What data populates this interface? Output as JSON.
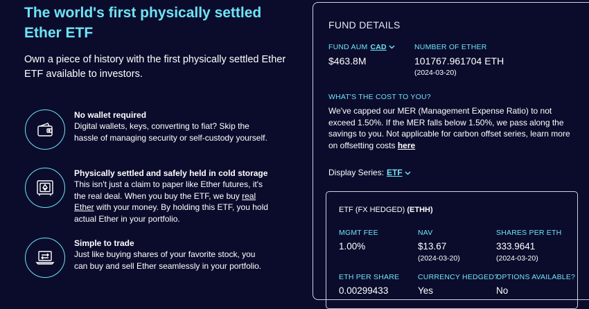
{
  "hero": {
    "title": "The world's first physically settled Ether ETF",
    "subtitle": "Own a piece of history with the first physically settled Ether ETF available to investors."
  },
  "features": [
    {
      "icon": "wallet-icon",
      "title": "No wallet required",
      "description": "Digital wallets, keys, converting to fiat? Skip the hassle of managing security or self-custody yourself."
    },
    {
      "icon": "vault-icon",
      "title": "Physically settled and safely held in cold storage",
      "desc_before": "This isn't just a claim to paper like Ether futures, it's the real deal. When you buy the ETF, we buy ",
      "desc_link": "real Ether",
      "desc_after": " with your money. By holding this ETF, you hold actual Ether in your portfolio."
    },
    {
      "icon": "laptop-transfer-icon",
      "title": "Simple to trade",
      "description": "Just like buying shares of your favorite stock, you can buy and sell Ether seamlessly in your portfolio."
    }
  ],
  "fund_details": {
    "heading": "FUND DETAILS",
    "aum_label": "FUND AUM",
    "currency": "CAD",
    "aum_value": "$463.8M",
    "ether_label": "NUMBER OF ETHER",
    "ether_value": "101767.961704 ETH",
    "ether_date": "(2024-03-20)",
    "cost_label": "WHAT'S THE COST TO YOU?",
    "cost_text": "We've capped our MER (Management Expense Ratio) to not exceed 1.50%. If the MER falls below 1.50%, we pass along the savings to you. Not applicable for carbon offset series, learn more on offsetting costs ",
    "cost_link": "here",
    "series_label": "Display Series:",
    "series_value": "ETF"
  },
  "series_card": {
    "title_prefix": "ETF (FX HEDGED) ",
    "title_ticker": "(ETHH)",
    "mgmt_fee_label": "MGMT FEE",
    "mgmt_fee_value": "1.00%",
    "nav_label": "NAV",
    "nav_value": "$13.67",
    "nav_date": "(2024-03-20)",
    "shares_label": "SHARES PER ETH",
    "shares_value": "333.9641",
    "shares_date": "(2024-03-20)",
    "eth_per_share_label": "ETH PER SHARE",
    "eth_per_share_value": "0.00299433",
    "hedged_label": "CURRENCY HEDGED?",
    "hedged_value": "Yes",
    "options_label": "OPTIONS AVAILABLE?",
    "options_value": "No"
  },
  "colors": {
    "background": "#0b0c2c",
    "accent": "#6fe3f5",
    "border": "#cfd3e0"
  }
}
